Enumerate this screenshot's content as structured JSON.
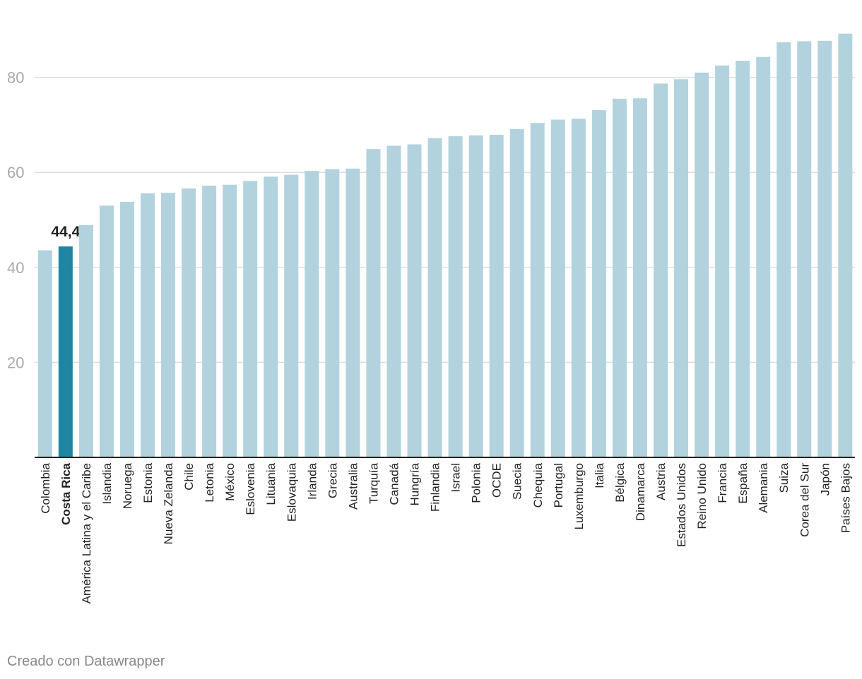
{
  "chart_data": {
    "type": "bar",
    "title": "",
    "xlabel": "",
    "ylabel": "",
    "ylim": [
      0,
      90
    ],
    "y_ticks": [
      20,
      40,
      60,
      80
    ],
    "grid": true,
    "categories": [
      "Colombia",
      "Costa Rica",
      "América Latina y el Caribe",
      "Islandia",
      "Noruega",
      "Estonia",
      "Nueva Zelanda",
      "Chile",
      "Letonia",
      "México",
      "Eslovenia",
      "Lituania",
      "Eslovaquia",
      "Irlanda",
      "Grecia",
      "Australia",
      "Turquía",
      "Canadá",
      "Hungría",
      "Finlandia",
      "Israel",
      "Polonia",
      "OCDE",
      "Suecia",
      "Chequia",
      "Portugal",
      "Luxemburgo",
      "Italia",
      "Bélgica",
      "Dinamarca",
      "Austria",
      "Estados Unidos",
      "Reino Unido",
      "Francia",
      "España",
      "Alemania",
      "Suiza",
      "Corea del Sur",
      "Japón",
      "Países Bajos"
    ],
    "values": [
      43.6,
      44.4,
      48.9,
      53.0,
      53.8,
      55.6,
      55.7,
      56.6,
      57.2,
      57.4,
      58.2,
      59.1,
      59.5,
      60.3,
      60.7,
      60.8,
      64.9,
      65.6,
      65.9,
      67.2,
      67.6,
      67.8,
      67.9,
      69.1,
      70.4,
      71.1,
      71.3,
      73.1,
      75.5,
      75.6,
      78.7,
      79.6,
      81.0,
      82.5,
      83.5,
      84.3,
      87.4,
      87.6,
      87.7,
      89.2
    ],
    "highlight": {
      "category": "Costa Rica",
      "value_label": "44,4",
      "color": "#1f85a2"
    },
    "colors": {
      "bar": "#b2d3dd",
      "highlight": "#1f85a2",
      "grid": "#dddddd",
      "axis": "#222222",
      "tick_label": "#a9a9a9",
      "category_label": "#222222"
    }
  },
  "footer": {
    "credit": "Creado con Datawrapper"
  }
}
